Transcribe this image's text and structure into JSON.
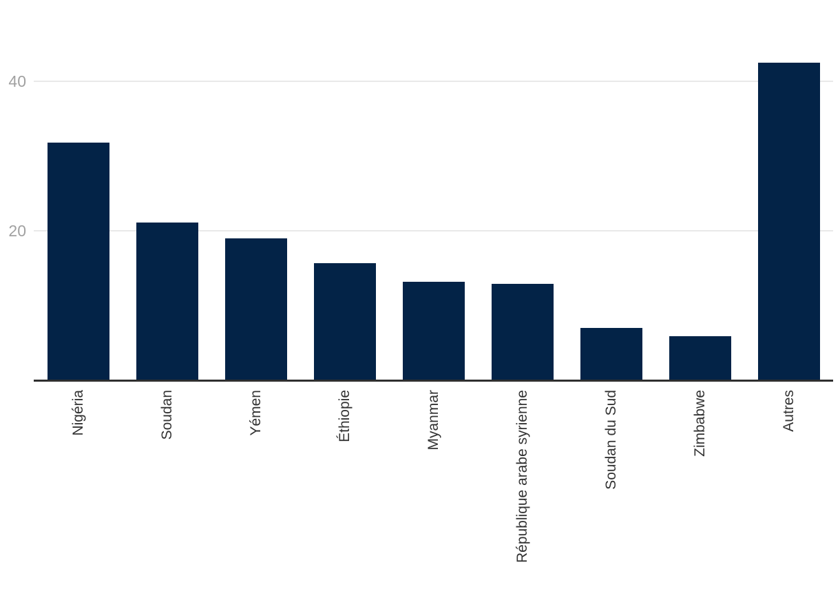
{
  "chart_data": {
    "type": "bar",
    "categories": [
      "Nigéria",
      "Soudan",
      "Yémen",
      "Éthiopie",
      "Myanmar",
      "République arabe syrienne",
      "Soudan du Sud",
      "Zimbabwe",
      "Autres"
    ],
    "values": [
      31.8,
      21.1,
      19.0,
      15.7,
      13.2,
      12.9,
      7.0,
      5.9,
      42.5
    ],
    "yticks": [
      20,
      40
    ],
    "ylim": [
      0,
      50
    ],
    "grid": true,
    "legend": false,
    "x_label_rotation": -90,
    "bar_color": "#032347",
    "grid_color": "#e9e9e9",
    "axis_color": "#2f2f2f",
    "tick_label_color": "#a1a1a1",
    "category_label_color": "#333333"
  }
}
